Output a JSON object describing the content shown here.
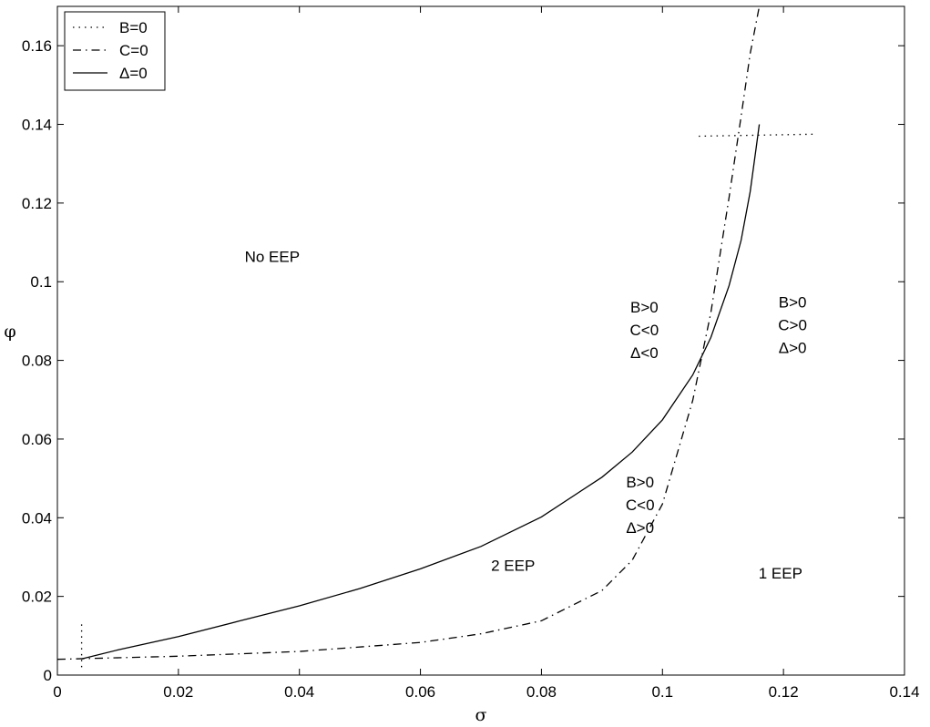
{
  "chart_data": {
    "type": "line",
    "title": "",
    "xlabel": "σ",
    "ylabel": "φ",
    "xlim": [
      0,
      0.14
    ],
    "ylim": [
      0,
      0.17
    ],
    "xticks": [
      "0",
      "0.02",
      "0.04",
      "0.06",
      "0.08",
      "0.1",
      "0.12",
      "0.14"
    ],
    "yticks": [
      "0",
      "0.02",
      "0.04",
      "0.06",
      "0.08",
      "0.1",
      "0.12",
      "0.14",
      "0.16"
    ],
    "grid": false,
    "legend_position": "top-left",
    "series": [
      {
        "name": "B=0",
        "style": "dotted",
        "segments": [
          [
            [
              0.004,
              0.002
            ],
            [
              0.004,
              0.014
            ]
          ],
          [
            [
              0.106,
              0.137
            ],
            [
              0.125,
              0.1375
            ]
          ]
        ]
      },
      {
        "name": "C=0",
        "style": "dashdot",
        "points": [
          [
            0,
            0.004
          ],
          [
            0.02,
            0.0048
          ],
          [
            0.04,
            0.006
          ],
          [
            0.06,
            0.0083
          ],
          [
            0.07,
            0.0105
          ],
          [
            0.08,
            0.0138
          ],
          [
            0.09,
            0.0215
          ],
          [
            0.095,
            0.0292
          ],
          [
            0.1,
            0.0435
          ],
          [
            0.105,
            0.0698
          ],
          [
            0.108,
            0.0921
          ],
          [
            0.111,
            0.1214
          ],
          [
            0.113,
            0.142
          ],
          [
            0.1145,
            0.158
          ],
          [
            0.116,
            0.17
          ]
        ]
      },
      {
        "name": "Δ=0",
        "style": "solid",
        "points": [
          [
            0.004,
            0.0041
          ],
          [
            0.01,
            0.0064
          ],
          [
            0.02,
            0.0098
          ],
          [
            0.03,
            0.0137
          ],
          [
            0.04,
            0.0176
          ],
          [
            0.05,
            0.022
          ],
          [
            0.06,
            0.027
          ],
          [
            0.07,
            0.0327
          ],
          [
            0.08,
            0.0402
          ],
          [
            0.09,
            0.0503
          ],
          [
            0.095,
            0.0567
          ],
          [
            0.1,
            0.0649
          ],
          [
            0.105,
            0.0763
          ],
          [
            0.108,
            0.0858
          ],
          [
            0.111,
            0.099
          ],
          [
            0.113,
            0.1105
          ],
          [
            0.1145,
            0.1229
          ],
          [
            0.1155,
            0.1343
          ],
          [
            0.116,
            0.14
          ]
        ]
      }
    ],
    "annotations": [
      {
        "lines": [
          "No EEP"
        ],
        "x": 0.0355,
        "y": 0.105
      },
      {
        "lines": [
          "B>0",
          "C<0",
          "Δ<0"
        ],
        "x": 0.097,
        "y": 0.0922
      },
      {
        "lines": [
          "B>0",
          "C>0",
          "Δ>0"
        ],
        "x": 0.1215,
        "y": 0.0935
      },
      {
        "lines": [
          "B>0",
          "C<0",
          "Δ>0"
        ],
        "x": 0.0963,
        "y": 0.0477
      },
      {
        "lines": [
          "2 EEP"
        ],
        "x": 0.0753,
        "y": 0.0265
      },
      {
        "lines": [
          "1 EEP"
        ],
        "x": 0.1195,
        "y": 0.0245
      }
    ]
  }
}
